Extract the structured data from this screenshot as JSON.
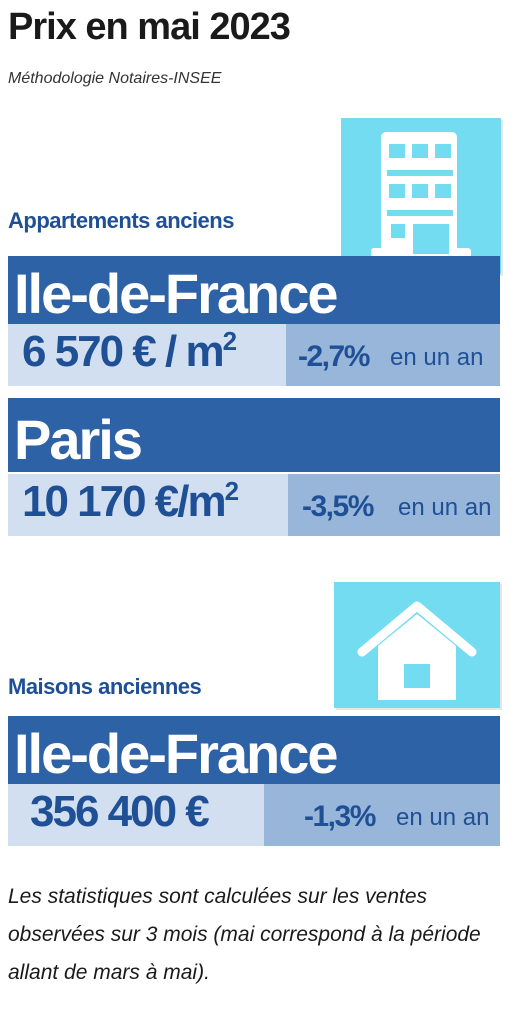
{
  "title": "Prix en mai 2023",
  "subtitle": "Méthodologie Notaires-INSEE",
  "appartements": {
    "label": "Appartements anciens",
    "icon": "building-icon",
    "idf": {
      "region": "Ile-de-France",
      "price": "6 570 € / m",
      "price_sup": "2",
      "change": "-2,7%",
      "suffix": "en un an"
    },
    "paris": {
      "region": "Paris",
      "price": "10 170 €/m",
      "price_sup": "2",
      "change": "-3,5%",
      "suffix": "en un an"
    }
  },
  "maisons": {
    "label": "Maisons anciennes",
    "icon": "house-icon",
    "idf": {
      "region": "Ile-de-France",
      "price": "356 400 €",
      "change": "-1,3%",
      "suffix": "en un an"
    }
  },
  "footnote": "Les statistiques sont calculées sur les ventes observées sur 3 mois (mai correspond à la période allant de mars à mai).",
  "colors": {
    "dark_blue": "#2d62a6",
    "light_blue": "#d2dff0",
    "mid_blue": "#98b6d9",
    "cyan": "#74dcf1",
    "text_blue": "#1f4f95"
  }
}
